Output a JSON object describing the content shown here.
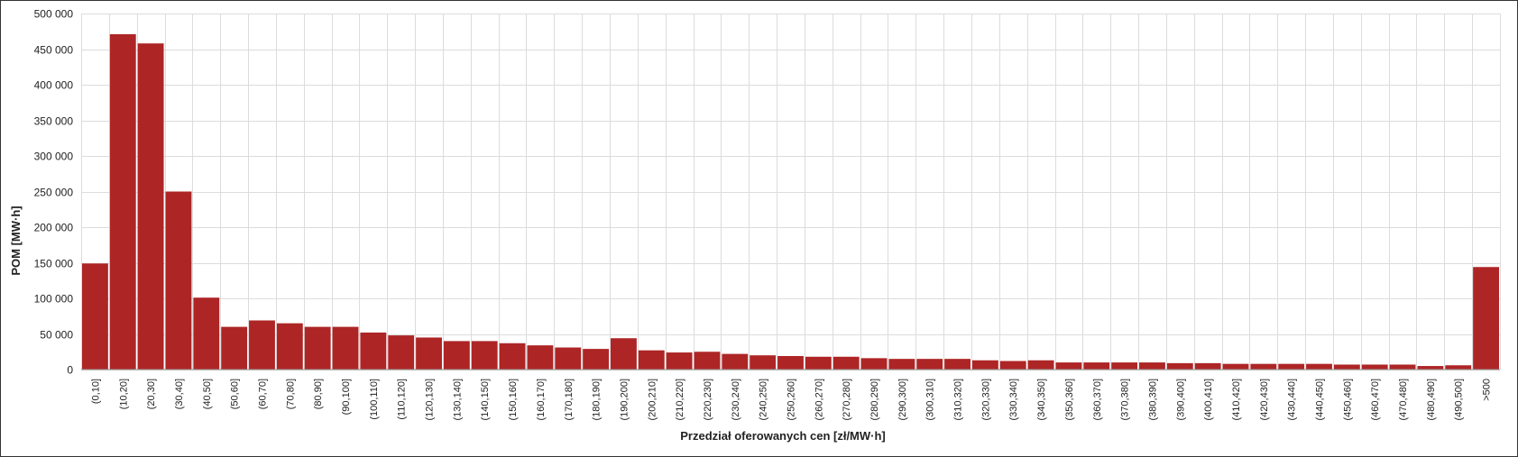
{
  "chart_data": {
    "type": "bar",
    "x_label": "Przedział oferowanych cen [zł/MW·h]",
    "y_label": "POM [MW·h]",
    "categories": [
      "(0,10]",
      "(10,20]",
      "(20,30]",
      "(30,40]",
      "(40,50]",
      "(50,60]",
      "(60,70]",
      "(70,80]",
      "(80,90]",
      "(90,100]",
      "(100,110]",
      "(110,120]",
      "(120,130]",
      "(130,140]",
      "(140,150]",
      "(150,160]",
      "(160,170]",
      "(170,180]",
      "(180,190]",
      "(190,200]",
      "(200,210]",
      "(210,220]",
      "(220,230]",
      "(230,240]",
      "(240,250]",
      "(250,260]",
      "(260,270]",
      "(270,280]",
      "(280,290]",
      "(290,300]",
      "(300,310]",
      "(310,320]",
      "(320,330]",
      "(330,340]",
      "(340,350]",
      "(350,360]",
      "(360,370]",
      "(370,380]",
      "(380,390]",
      "(390,400]",
      "(400,410]",
      "(410,420]",
      "(420,430]",
      "(430,440]",
      "(440,450]",
      "(450,460]",
      "(460,470]",
      "(470,480]",
      "(480,490]",
      "(490,500]",
      ">500"
    ],
    "values": [
      149000,
      471000,
      458000,
      250000,
      101000,
      60000,
      69000,
      65000,
      60000,
      60000,
      52000,
      48000,
      45000,
      40000,
      40000,
      37000,
      34000,
      31000,
      29000,
      44000,
      27000,
      24000,
      25000,
      22000,
      20000,
      19000,
      18000,
      18000,
      16000,
      15000,
      15000,
      15000,
      13000,
      12000,
      13000,
      10000,
      10000,
      10000,
      10000,
      9000,
      9000,
      8000,
      8000,
      8000,
      8000,
      7000,
      7000,
      7000,
      5000,
      6000,
      144000
    ],
    "color": "#ae2526",
    "ylim": [
      0,
      500000
    ],
    "yticks": [
      0,
      {
        "value": 50000,
        "label": "50 000"
      },
      {
        "value": 100000,
        "label": "100 000"
      },
      {
        "value": 150000,
        "label": "150 000"
      },
      {
        "value": 200000,
        "label": "200 000"
      },
      {
        "value": 250000,
        "label": "250 000"
      },
      {
        "value": 300000,
        "label": "300 000"
      },
      {
        "value": 350000,
        "label": "350 000"
      },
      {
        "value": 400000,
        "label": "400 000"
      },
      {
        "value": 450000,
        "label": "450 000"
      },
      {
        "value": 500000,
        "label": "500 000"
      }
    ],
    "grid": true
  }
}
